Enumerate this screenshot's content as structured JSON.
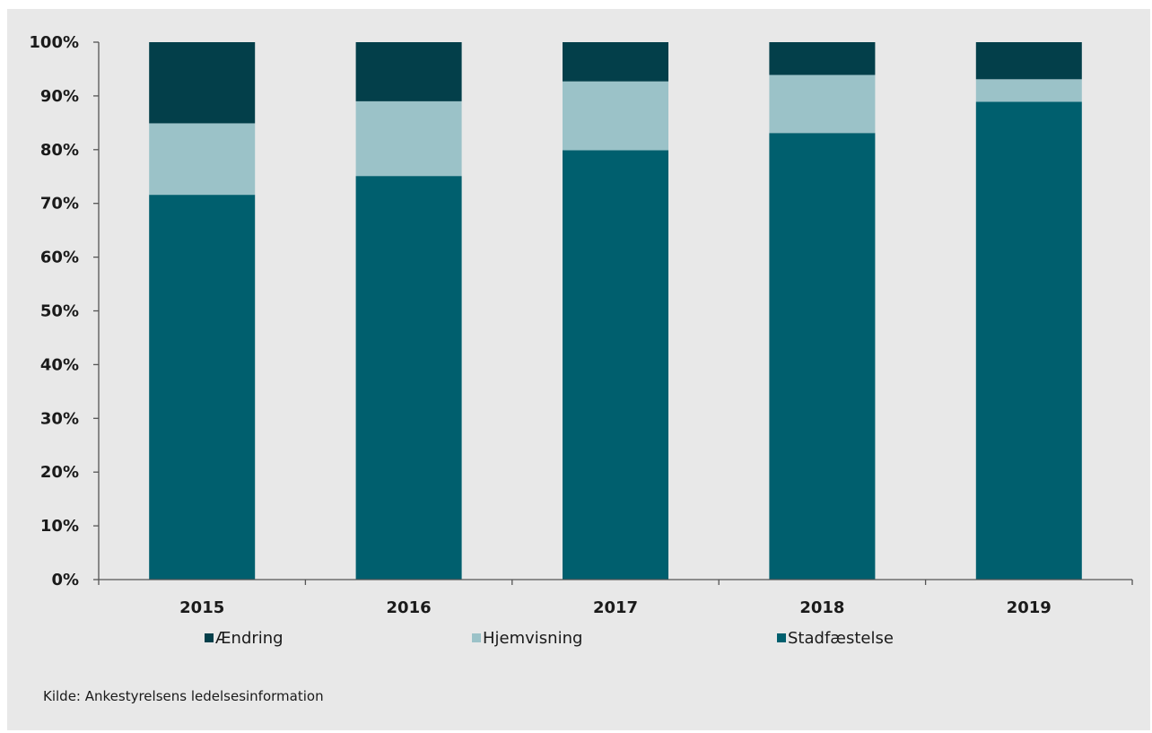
{
  "chart_data": {
    "type": "bar",
    "stacked": true,
    "categories": [
      "2015",
      "2016",
      "2017",
      "2018",
      "2019"
    ],
    "series": [
      {
        "name": "Stadfæstelse",
        "values": [
          71.6,
          75.1,
          79.9,
          83.1,
          88.9
        ],
        "color": "#005f6e"
      },
      {
        "name": "Hjemvisning",
        "values": [
          13.3,
          13.9,
          12.8,
          10.8,
          4.2
        ],
        "color": "#9bc2c8"
      },
      {
        "name": "Ændring",
        "values": [
          15.1,
          11.0,
          7.3,
          6.1,
          6.9
        ],
        "color": "#033f4a"
      }
    ],
    "legend_order": [
      "Ændring",
      "Hjemvisning",
      "Stadfæstelse"
    ],
    "y_ticks": [
      "0%",
      "10%",
      "20%",
      "30%",
      "40%",
      "50%",
      "60%",
      "70%",
      "80%",
      "90%",
      "100%"
    ],
    "ylim": [
      0,
      100
    ],
    "grid": false,
    "legend_position": "bottom"
  },
  "source_note": "Kilde:  Ankestyrelsens ledelsesinformation"
}
